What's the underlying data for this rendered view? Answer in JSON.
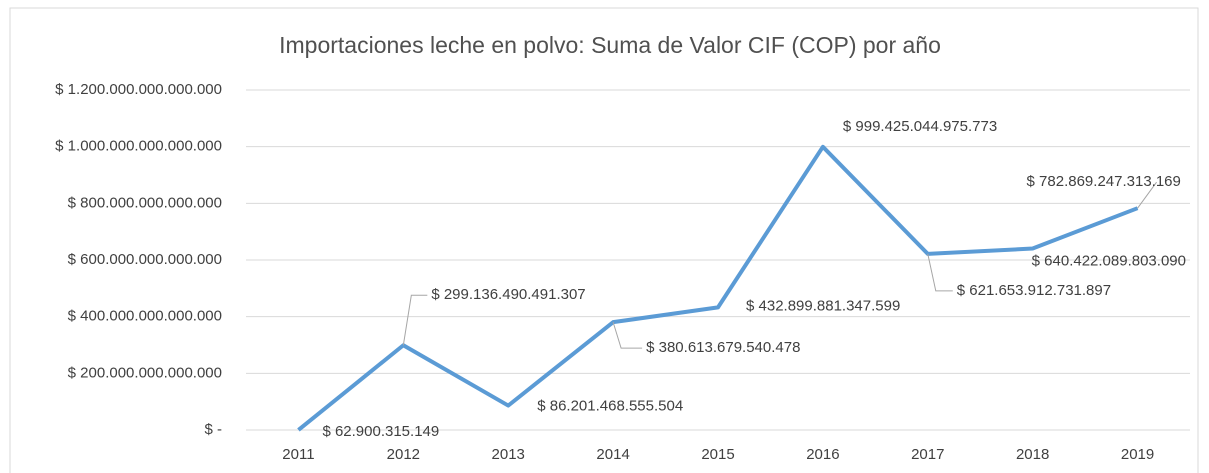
{
  "chart_data": {
    "type": "line",
    "title": "Importaciones leche en polvo: Suma de Valor CIF (COP) por año",
    "categories": [
      "2011",
      "2012",
      "2013",
      "2014",
      "2015",
      "2016",
      "2017",
      "2018",
      "2019"
    ],
    "series": [
      {
        "name": "Suma de Valor CIF (COP)",
        "color": "#5b9bd5",
        "values": [
          62900315149,
          299136490491307,
          86201468555504,
          380613679540478,
          432899881347599,
          999425044975773,
          621653912731897,
          640422089803090,
          782869247313169
        ],
        "value_labels": [
          "$ 62.900.315.149",
          "$ 299.136.490.491.307",
          "$ 86.201.468.555.504",
          "$ 380.613.679.540.478",
          "$ 432.899.881.347.599",
          "$ 999.425.044.975.773",
          "$ 621.653.912.731.897",
          "$ 640.422.089.803.090",
          "$ 782.869.247.313.169"
        ]
      }
    ],
    "ylim": [
      0,
      1200000000000000
    ],
    "yticks": [
      {
        "value": 0,
        "label": "$ -"
      },
      {
        "value": 200000000000000,
        "label": "$ 200.000.000.000.000"
      },
      {
        "value": 400000000000000,
        "label": "$ 400.000.000.000.000"
      },
      {
        "value": 600000000000000,
        "label": "$ 600.000.000.000.000"
      },
      {
        "value": 800000000000000,
        "label": "$ 800.000.000.000.000"
      },
      {
        "value": 1000000000000000,
        "label": "$ 1.000.000.000.000.000"
      },
      {
        "value": 1200000000000000,
        "label": "$ 1.200.000.000.000.000"
      }
    ],
    "grid": true
  }
}
